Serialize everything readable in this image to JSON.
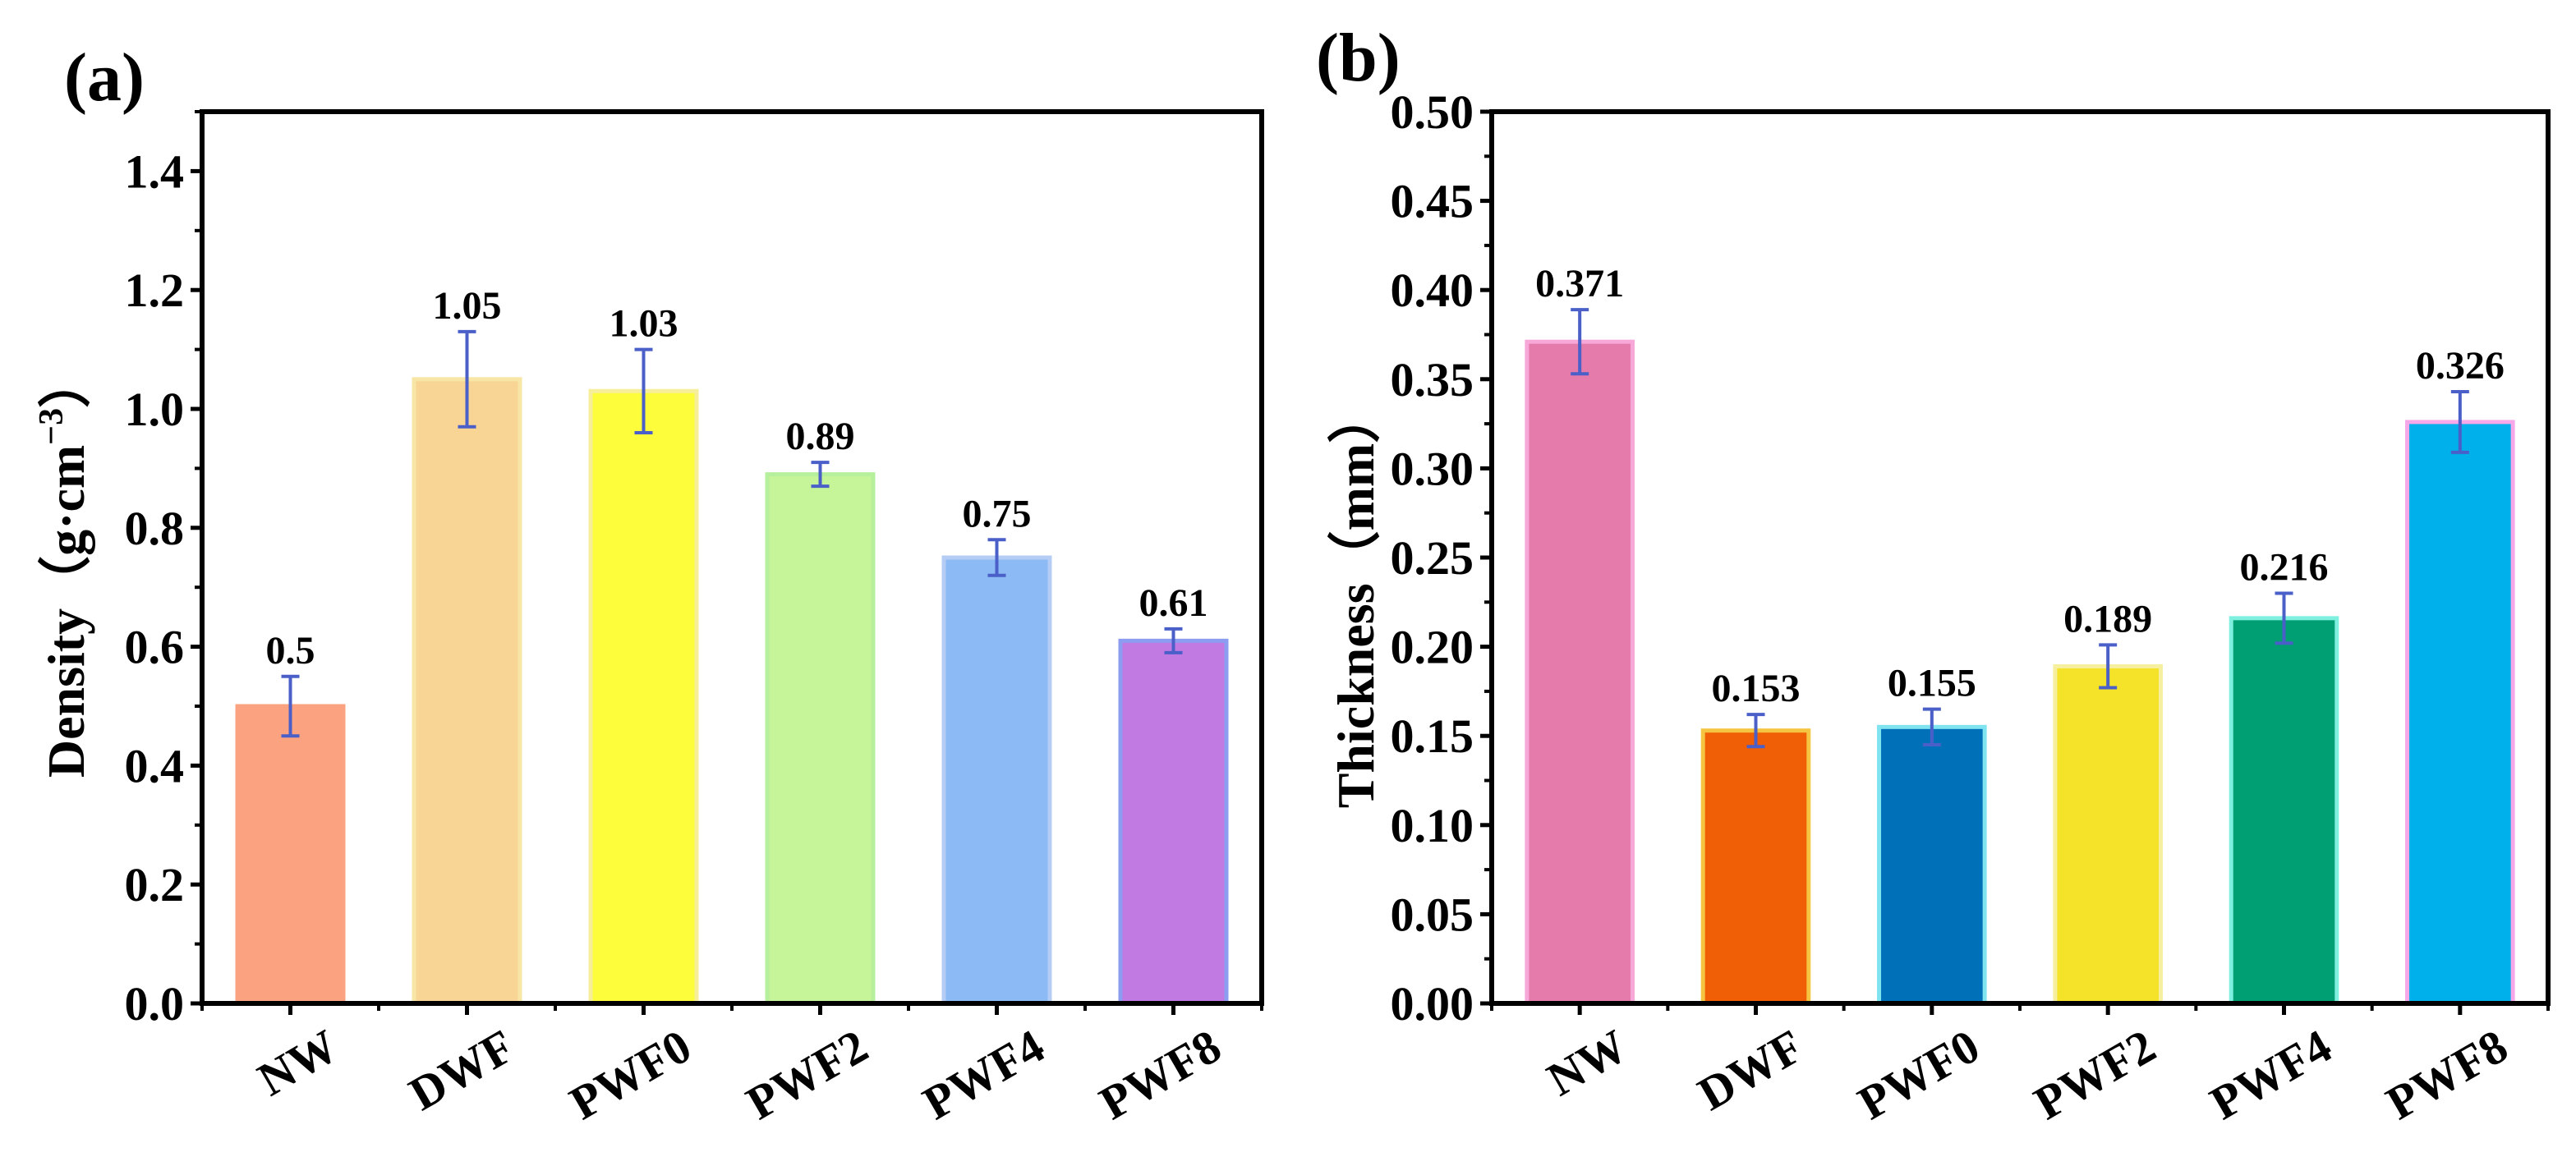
{
  "panel_a": {
    "panel_label": "(a)",
    "axis_title_main": "Density",
    "axis_title_unit": "（g·cm",
    "axis_title_sup": "−3",
    "axis_title_close": "）"
  },
  "panel_b": {
    "panel_label": "(b)",
    "axis_title": "Thickness（mm）"
  },
  "chart_data": [
    {
      "type": "bar",
      "title": "(a)",
      "xlabel": "",
      "ylabel": "Density（g·cm−3）",
      "categories": [
        "NW",
        "DWF",
        "PWF0",
        "PWF2",
        "PWF4",
        "PWF8"
      ],
      "values": [
        0.5,
        1.05,
        1.03,
        0.89,
        0.75,
        0.61
      ],
      "errors": [
        0.05,
        0.08,
        0.07,
        0.02,
        0.03,
        0.02
      ],
      "labels": [
        "0.5",
        "1.05",
        "1.03",
        "0.89",
        "0.75",
        "0.61"
      ],
      "colors": [
        "#FBA380",
        "#F9D595",
        "#FDFD3C",
        "#C6F599",
        "#8CBAF5",
        "#C27AE3"
      ],
      "edge_colors": [
        "#FBA380",
        "#F7E6A5",
        "#F7EE9A",
        "#B6F09C",
        "#B5CCF5",
        "#8C9CF0"
      ],
      "ylim": [
        0,
        1.5
      ],
      "yticks": [
        "0.0",
        "0.2",
        "0.4",
        "0.6",
        "0.8",
        "1.0",
        "1.2",
        "1.4"
      ],
      "ytick_values": [
        0,
        0.2,
        0.4,
        0.6,
        0.8,
        1.0,
        1.2,
        1.4
      ],
      "error_color": "#4A5FC8",
      "grid": false
    },
    {
      "type": "bar",
      "title": "(b)",
      "xlabel": "",
      "ylabel": "Thickness（mm）",
      "categories": [
        "NW",
        "DWF",
        "PWF0",
        "PWF2",
        "PWF4",
        "PWF8"
      ],
      "values": [
        0.371,
        0.153,
        0.155,
        0.189,
        0.216,
        0.326
      ],
      "errors": [
        0.018,
        0.009,
        0.01,
        0.012,
        0.014,
        0.017
      ],
      "labels": [
        "0.371",
        "0.153",
        "0.155",
        "0.189",
        "0.216",
        "0.326"
      ],
      "colors": [
        "#E47BAA",
        "#F05F05",
        "#0070B8",
        "#F5E32A",
        "#009E73",
        "#00B0EA"
      ],
      "edge_colors": [
        "#F7A8D8",
        "#F5C542",
        "#7FE3F0",
        "#F7EFA0",
        "#7FF0E0",
        "#F7A8E8"
      ],
      "ylim": [
        0,
        0.5
      ],
      "yticks": [
        "0.00",
        "0.05",
        "0.10",
        "0.15",
        "0.20",
        "0.25",
        "0.30",
        "0.35",
        "0.40",
        "0.45",
        "0.50"
      ],
      "ytick_values": [
        0,
        0.05,
        0.1,
        0.15,
        0.2,
        0.25,
        0.3,
        0.35,
        0.4,
        0.45,
        0.5
      ],
      "error_color": "#4A5FC8",
      "grid": false
    }
  ]
}
